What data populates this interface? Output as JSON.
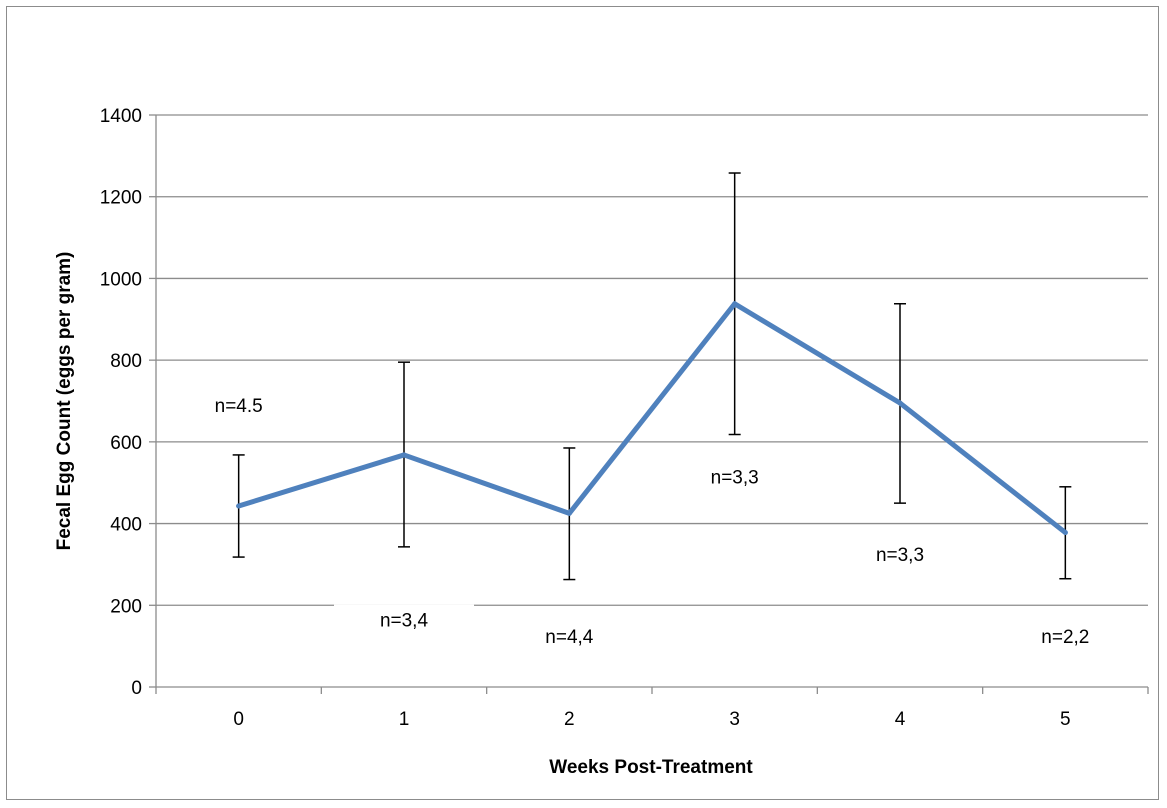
{
  "chart_data": {
    "type": "line",
    "title": "",
    "xlabel": "Weeks Post-Treatment",
    "ylabel": "Fecal Egg Count (eggs per gram)",
    "categories": [
      "0",
      "1",
      "2",
      "3",
      "4",
      "5"
    ],
    "ylim": [
      0,
      1400
    ],
    "yticks": [
      0,
      200,
      400,
      600,
      800,
      1000,
      1200,
      1400
    ],
    "grid": "horizontal",
    "series": [
      {
        "color": "#4f81bd",
        "values": [
          443,
          568,
          425,
          938,
          695,
          378
        ],
        "error_low": [
          318,
          343,
          263,
          618,
          450,
          265
        ],
        "error_high": [
          568,
          795,
          585,
          1258,
          938,
          490
        ]
      }
    ],
    "annotations": [
      {
        "text": "n=4.5",
        "x": 0,
        "y": 690
      },
      {
        "text": "n=3,4",
        "x": 1,
        "y": 165
      },
      {
        "text": "n=4,4",
        "x": 2,
        "y": 125
      },
      {
        "text": "n=3,3",
        "x": 3,
        "y": 515
      },
      {
        "text": "n=3,3",
        "x": 4,
        "y": 325
      },
      {
        "text": "n=2,2",
        "x": 5,
        "y": 125
      }
    ]
  }
}
